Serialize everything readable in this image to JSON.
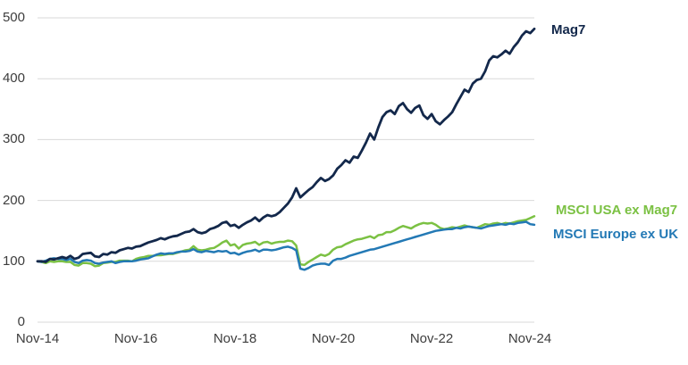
{
  "chart_data": {
    "type": "line",
    "title": "",
    "xlabel": "",
    "ylabel": "",
    "x_unit": "month",
    "x_range": [
      "Nov-14",
      "Dec-24"
    ],
    "x_tick_labels": [
      "Nov-14",
      "Nov-16",
      "Nov-18",
      "Nov-20",
      "Nov-22",
      "Nov-24"
    ],
    "x_tick_indices": [
      0,
      24,
      48,
      72,
      96,
      120
    ],
    "yticks": [
      0,
      100,
      200,
      300,
      400,
      500
    ],
    "ylim": [
      0,
      500
    ],
    "grid": "horizontal",
    "gridline_color": "#d9d9d9",
    "tick_label_color": "#3d3d3d",
    "legend_position": "line-end-labels-right",
    "base_value": 100,
    "series": [
      {
        "name": "Mag7",
        "color": "#13284B",
        "values": [
          100,
          100,
          99,
          104,
          103,
          105,
          107,
          105,
          109,
          104,
          106,
          112,
          113,
          114,
          108,
          107,
          112,
          111,
          115,
          114,
          118,
          120,
          122,
          121,
          124,
          125,
          128,
          131,
          133,
          135,
          138,
          136,
          139,
          141,
          142,
          145,
          148,
          149,
          153,
          148,
          146,
          148,
          153,
          155,
          158,
          163,
          165,
          158,
          160,
          155,
          160,
          164,
          167,
          172,
          166,
          172,
          176,
          174,
          176,
          181,
          188,
          195,
          205,
          220,
          205,
          211,
          217,
          222,
          230,
          237,
          232,
          235,
          241,
          252,
          258,
          266,
          262,
          272,
          270,
          282,
          295,
          310,
          300,
          320,
          337,
          345,
          348,
          342,
          355,
          360,
          350,
          344,
          352,
          356,
          340,
          334,
          342,
          330,
          325,
          332,
          338,
          345,
          358,
          370,
          382,
          378,
          392,
          398,
          400,
          412,
          430,
          437,
          435,
          440,
          446,
          441,
          452,
          460,
          471,
          478,
          475,
          482
        ]
      },
      {
        "name": "MSCI USA ex Mag7",
        "color": "#7BC143",
        "values": [
          100,
          99,
          97,
          100,
          99,
          100,
          100,
          99,
          99,
          94,
          93,
          97,
          97,
          96,
          92,
          93,
          97,
          98,
          99,
          99,
          101,
          101,
          101,
          100,
          104,
          106,
          107,
          109,
          109,
          110,
          110,
          111,
          112,
          112,
          114,
          116,
          118,
          119,
          125,
          119,
          118,
          119,
          121,
          122,
          126,
          131,
          134,
          126,
          128,
          121,
          127,
          129,
          130,
          132,
          127,
          131,
          132,
          129,
          131,
          132,
          132,
          134,
          133,
          126,
          95,
          94,
          99,
          103,
          107,
          111,
          109,
          112,
          119,
          123,
          124,
          128,
          131,
          134,
          136,
          137,
          139,
          141,
          138,
          143,
          144,
          148,
          148,
          151,
          155,
          158,
          156,
          154,
          158,
          161,
          163,
          162,
          163,
          160,
          155,
          153,
          154,
          156,
          155,
          157,
          159,
          157,
          156,
          155,
          158,
          161,
          160,
          162,
          163,
          161,
          163,
          162,
          164,
          166,
          167,
          168,
          171,
          174
        ]
      },
      {
        "name": "MSCI Europe ex UK",
        "color": "#2379B5",
        "values": [
          100,
          99,
          101,
          104,
          105,
          104,
          104,
          102,
          104,
          99,
          97,
          101,
          102,
          101,
          97,
          96,
          98,
          99,
          100,
          97,
          99,
          100,
          100,
          100,
          101,
          103,
          104,
          105,
          108,
          111,
          113,
          112,
          113,
          113,
          115,
          116,
          116,
          117,
          120,
          116,
          115,
          117,
          116,
          115,
          117,
          116,
          117,
          113,
          114,
          111,
          114,
          116,
          117,
          119,
          116,
          119,
          119,
          118,
          119,
          121,
          123,
          124,
          122,
          118,
          88,
          86,
          89,
          93,
          95,
          96,
          96,
          94,
          101,
          104,
          104,
          106,
          109,
          111,
          113,
          115,
          117,
          119,
          120,
          122,
          124,
          126,
          128,
          130,
          132,
          134,
          136,
          138,
          140,
          142,
          144,
          146,
          148,
          150,
          151,
          152,
          153,
          153,
          155,
          154,
          156,
          157,
          156,
          155,
          154,
          156,
          158,
          159,
          160,
          161,
          160,
          162,
          161,
          163,
          164,
          165,
          161,
          160
        ]
      }
    ]
  },
  "colors": {
    "background": "#ffffff",
    "gridline": "#d9d9d9",
    "tick_label": "#3d3d3d",
    "mag7": "#13284B",
    "msci_usa_ex_mag7": "#7BC143",
    "msci_europe_ex_uk": "#2379B5"
  }
}
